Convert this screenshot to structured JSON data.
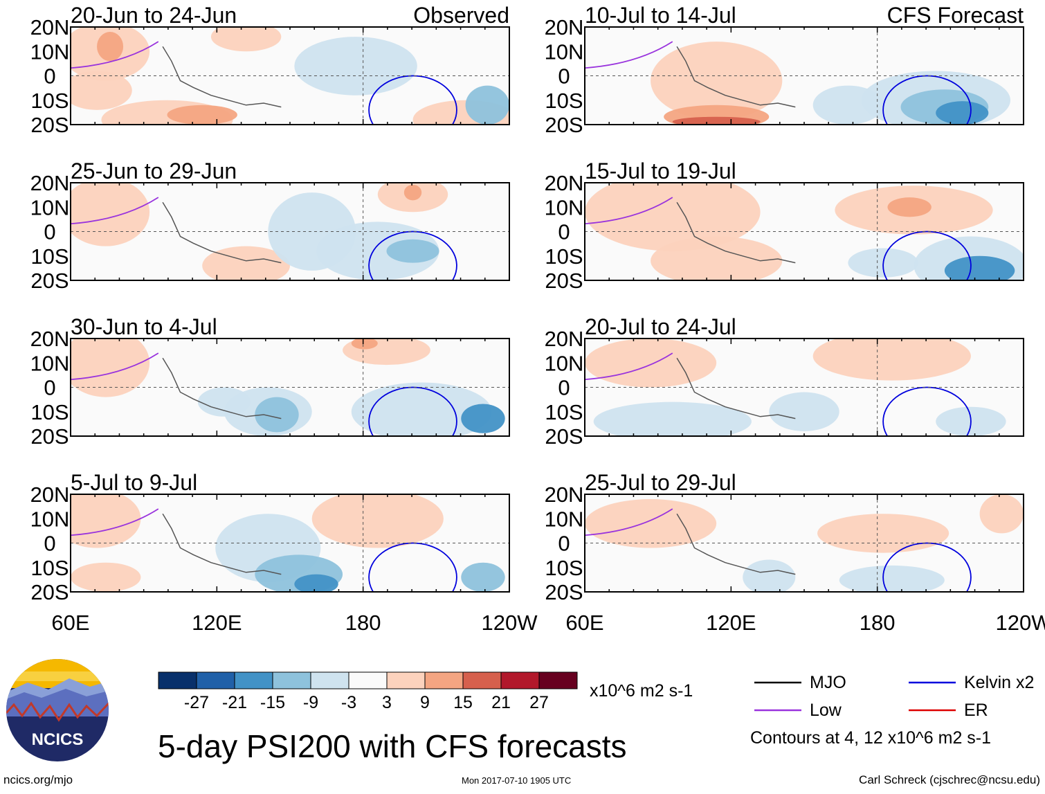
{
  "figure": {
    "title": "5-day PSI200 with CFS forecasts",
    "timestamp": "Mon 2017-07-10 1905 UTC",
    "url": "ncics.org/mjo",
    "author": "Carl Schreck (cjschrec@ncsu.edu)",
    "logo_text": "NCICS",
    "column_titles": [
      "Observed",
      "CFS Forecast"
    ]
  },
  "chart_data": {
    "type": "heatmap",
    "title": "5-day PSI200 with CFS forecasts",
    "variable": "200-hPa streamfunction anomaly (PSI200)",
    "units": "x10^6 m2 s-1",
    "x_ticks": [
      "60E",
      "120E",
      "180",
      "120W"
    ],
    "y_ticks": [
      "20N",
      "10N",
      "0",
      "10S",
      "20S"
    ],
    "xlim": [
      "60E",
      "120W"
    ],
    "ylim": [
      "20S",
      "20N"
    ],
    "panels": [
      {
        "period": "20-Jun to 24-Jun",
        "source": "Observed"
      },
      {
        "period": "25-Jun to 29-Jun",
        "source": "Observed"
      },
      {
        "period": "30-Jun to 4-Jul",
        "source": "Observed"
      },
      {
        "period": "5-Jul to 9-Jul",
        "source": "Observed"
      },
      {
        "period": "10-Jul to 14-Jul",
        "source": "CFS Forecast"
      },
      {
        "period": "15-Jul to 19-Jul",
        "source": "CFS Forecast"
      },
      {
        "period": "20-Jul to 24-Jul",
        "source": "CFS Forecast"
      },
      {
        "period": "25-Jul to 29-Jul",
        "source": "CFS Forecast"
      }
    ],
    "colorbar": {
      "colors": [
        "#08306b",
        "#2060a8",
        "#4292c6",
        "#8ec2dc",
        "#cfe3ef",
        "#fafafa",
        "#fcd2bd",
        "#f4a582",
        "#d6604d",
        "#b2182b",
        "#67001f"
      ],
      "tick_labels": [
        "-27",
        "-21",
        "-15",
        "-9",
        "-3",
        "3",
        "9",
        "15",
        "21",
        "27"
      ]
    },
    "contour_legend": [
      {
        "label": "MJO",
        "color": "#000000"
      },
      {
        "label": "Kelvin x2",
        "color": "#0000dd"
      },
      {
        "label": "Low",
        "color": "#9933dd"
      },
      {
        "label": "ER",
        "color": "#dd0000"
      }
    ],
    "contour_note": "Contours at 4, 12 x10^6 m2 s-1"
  }
}
